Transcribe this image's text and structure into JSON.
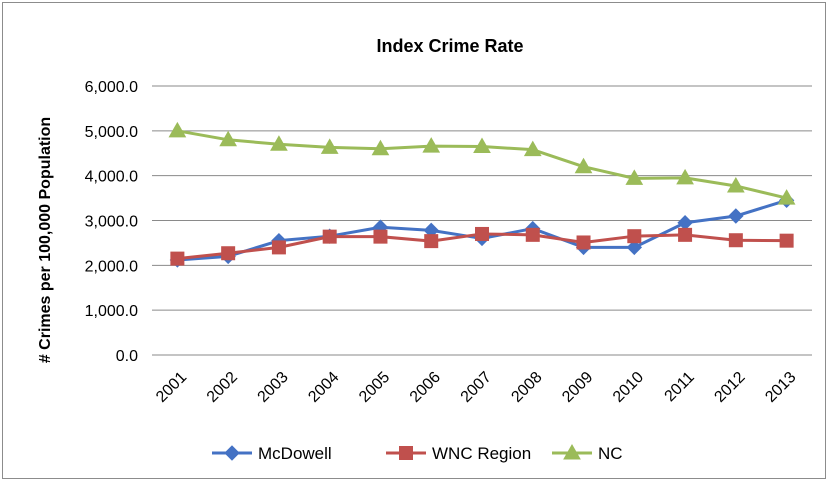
{
  "chart_data": {
    "type": "line",
    "title": "Index Crime Rate",
    "xlabel": "",
    "ylabel": "# Crimes per 100,000 Population",
    "categories": [
      "2001",
      "2002",
      "2003",
      "2004",
      "2005",
      "2006",
      "2007",
      "2008",
      "2009",
      "2010",
      "2011",
      "2012",
      "2013"
    ],
    "ylim": [
      0,
      6000
    ],
    "yticks": [
      0,
      1000,
      2000,
      3000,
      4000,
      5000,
      6000
    ],
    "ytick_labels": [
      "0.0",
      "1,000.0",
      "2,000.0",
      "3,000.0",
      "4,000.0",
      "5,000.0",
      "6,000.0"
    ],
    "grid": true,
    "legend": "bottom",
    "series": [
      {
        "name": "McDowell",
        "color": "#4472c4",
        "marker": "diamond",
        "values": [
          2120,
          2200,
          2550,
          2650,
          2850,
          2780,
          2600,
          2820,
          2400,
          2400,
          2950,
          3100,
          3450
        ]
      },
      {
        "name": "WNC Region",
        "color": "#c0504d",
        "marker": "square",
        "values": [
          2150,
          2270,
          2400,
          2640,
          2640,
          2540,
          2700,
          2680,
          2510,
          2650,
          2680,
          2560,
          2550
        ]
      },
      {
        "name": "NC",
        "color": "#9bbb59",
        "marker": "triangle",
        "values": [
          5000,
          4800,
          4700,
          4630,
          4600,
          4660,
          4650,
          4580,
          4200,
          3940,
          3950,
          3770,
          3500
        ]
      }
    ]
  }
}
